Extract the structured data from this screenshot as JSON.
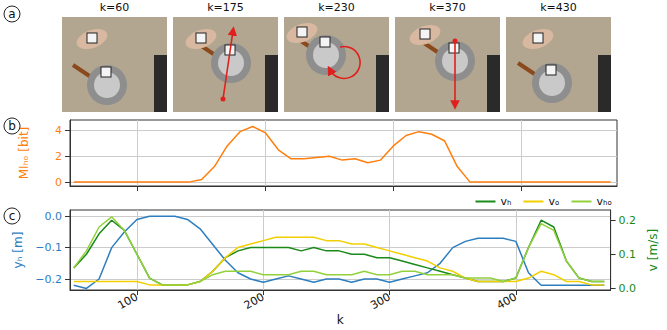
{
  "frames": {
    "panel": "a",
    "labels": [
      "k=60",
      "k=175",
      "k=230",
      "k=370",
      "k=430"
    ]
  },
  "chart_data": [
    {
      "type": "line",
      "panel": "b",
      "x": [
        50,
        60,
        70,
        80,
        90,
        100,
        110,
        120,
        130,
        140,
        150,
        160,
        170,
        180,
        190,
        200,
        210,
        220,
        230,
        240,
        250,
        260,
        270,
        280,
        290,
        300,
        310,
        320,
        330,
        340,
        350,
        360,
        370,
        380,
        390,
        400,
        410,
        420,
        430,
        440,
        450,
        460,
        470
      ],
      "ylabel": "MIₕₒ [bit]",
      "xlim": [
        47,
        475
      ],
      "xticks": [
        100,
        200,
        300,
        400
      ],
      "ylim": [
        -0.3,
        4.8
      ],
      "yticks": [
        0,
        2,
        4
      ],
      "grid": true,
      "tick_labels": "y",
      "series": [
        {
          "color": "#ff7f0e",
          "values": [
            0,
            0,
            0,
            0,
            0,
            0,
            0,
            0,
            0,
            0,
            0.2,
            1.2,
            2.8,
            3.9,
            4.3,
            3.8,
            2.5,
            1.8,
            1.8,
            1.9,
            2.0,
            1.7,
            1.8,
            1.5,
            1.7,
            2.8,
            3.6,
            3.9,
            3.7,
            3.2,
            1.2,
            0,
            0,
            0,
            0,
            0,
            0,
            0,
            0,
            0,
            0,
            0,
            0
          ]
        }
      ]
    },
    {
      "type": "line",
      "panel": "c",
      "x": [
        50,
        60,
        70,
        80,
        90,
        100,
        110,
        120,
        130,
        140,
        150,
        160,
        170,
        180,
        190,
        200,
        210,
        220,
        230,
        240,
        250,
        260,
        270,
        280,
        290,
        300,
        310,
        320,
        330,
        340,
        350,
        360,
        370,
        380,
        390,
        400,
        410,
        420,
        430,
        440,
        450,
        460,
        470
      ],
      "xlabel": "k",
      "ylabel": "yₕ [m]",
      "y2label": "v [m/s]",
      "xlim": [
        47,
        475
      ],
      "xticks": [
        100,
        200,
        300,
        400
      ],
      "ylim": [
        -0.235,
        0.02
      ],
      "yticks": [
        {
          "value": -0.2,
          "label": "−0.2"
        },
        {
          "value": -0.1,
          "label": "−0.1"
        },
        {
          "value": 0,
          "label": "0.0"
        }
      ],
      "y2lim": [
        -0.005,
        0.23
      ],
      "y2ticks": [
        {
          "value": 0,
          "label": "0.0"
        },
        {
          "value": 0.1,
          "label": "0.1"
        },
        {
          "value": 0.2,
          "label": "0.2"
        }
      ],
      "grid": true,
      "legend": "top-right",
      "series": [
        {
          "color": "#2e7ebf",
          "values": [
            -0.22,
            -0.23,
            -0.2,
            -0.1,
            -0.05,
            -0.01,
            0,
            0,
            0,
            -0.01,
            -0.04,
            -0.09,
            -0.14,
            -0.18,
            -0.2,
            -0.21,
            -0.2,
            -0.19,
            -0.2,
            -0.21,
            -0.2,
            -0.2,
            -0.21,
            -0.2,
            -0.2,
            -0.21,
            -0.2,
            -0.19,
            -0.18,
            -0.15,
            -0.1,
            -0.08,
            -0.07,
            -0.07,
            -0.07,
            -0.08,
            -0.18,
            -0.22,
            -0.22,
            -0.22,
            -0.22,
            -0.22,
            -0.22
          ]
        },
        {
          "name": "vₕ",
          "color": "#1a8a1a",
          "axis": "y2",
          "values": [
            0.06,
            0.1,
            0.16,
            0.2,
            0.17,
            0.1,
            0.03,
            0.01,
            0.01,
            0.01,
            0.02,
            0.05,
            0.09,
            0.11,
            0.12,
            0.12,
            0.12,
            0.12,
            0.11,
            0.12,
            0.11,
            0.11,
            0.1,
            0.1,
            0.09,
            0.09,
            0.08,
            0.07,
            0.06,
            0.05,
            0.04,
            0.03,
            0.02,
            0.02,
            0.02,
            0.03,
            0.12,
            0.2,
            0.18,
            0.08,
            0.03,
            0.02,
            0.02
          ]
        },
        {
          "name": "vₒ",
          "color": "#f2cf00",
          "axis": "y2",
          "values": [
            0.02,
            0.02,
            0.02,
            0.02,
            0.02,
            0.02,
            0.01,
            0.01,
            0.01,
            0.01,
            0.02,
            0.05,
            0.09,
            0.12,
            0.13,
            0.14,
            0.15,
            0.15,
            0.15,
            0.15,
            0.14,
            0.14,
            0.13,
            0.13,
            0.12,
            0.11,
            0.1,
            0.09,
            0.08,
            0.06,
            0.05,
            0.03,
            0.02,
            0.02,
            0.02,
            0.02,
            0.03,
            0.05,
            0.04,
            0.02,
            0.02,
            0.01,
            0.01
          ]
        },
        {
          "name": "vₕₒ",
          "color": "#93d13c",
          "axis": "y2",
          "values": [
            0.06,
            0.11,
            0.18,
            0.21,
            0.17,
            0.1,
            0.03,
            0.01,
            0.01,
            0.01,
            0.02,
            0.04,
            0.05,
            0.05,
            0.05,
            0.04,
            0.04,
            0.04,
            0.05,
            0.05,
            0.04,
            0.04,
            0.04,
            0.05,
            0.04,
            0.04,
            0.05,
            0.05,
            0.04,
            0.04,
            0.04,
            0.03,
            0.03,
            0.03,
            0.02,
            0.03,
            0.12,
            0.19,
            0.17,
            0.08,
            0.03,
            0.02,
            0.02
          ]
        }
      ]
    }
  ]
}
